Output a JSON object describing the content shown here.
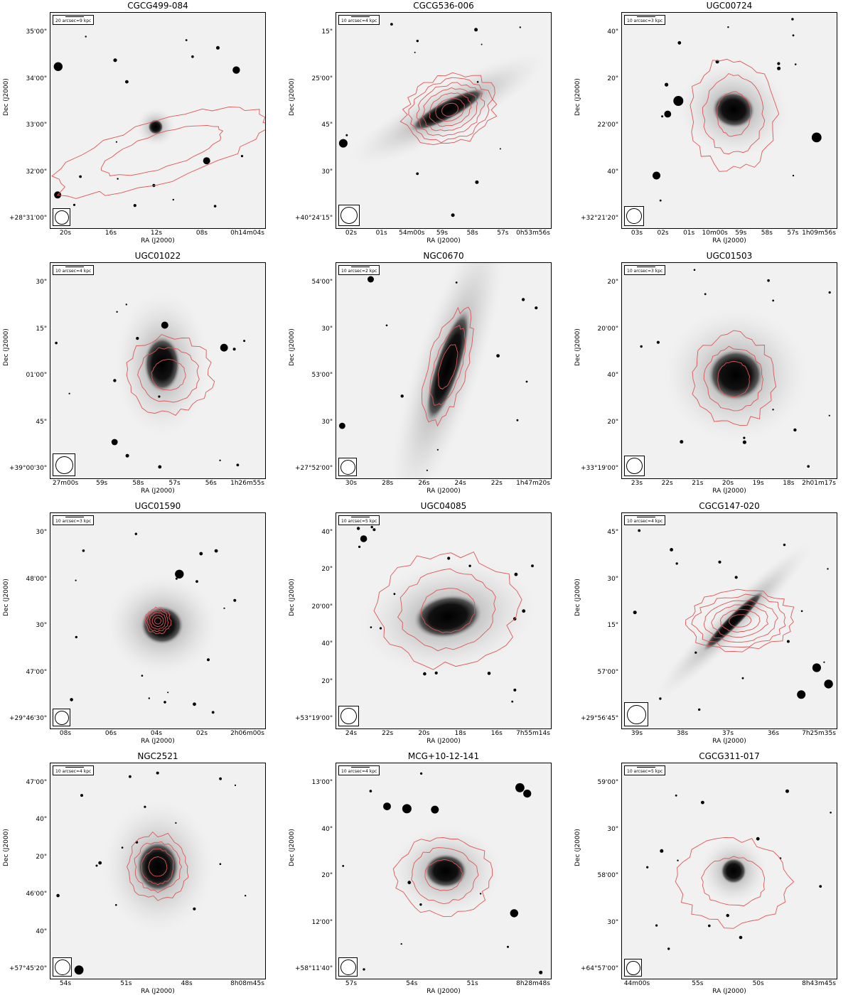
{
  "figure": {
    "xlabel": "RA (J2000)",
    "ylabel": "Dec (J2000)",
    "contour_color": "#e05555",
    "colormap": "inverted grayscale"
  },
  "panels": [
    {
      "title": "CGCG499-084",
      "scale": "20 arcsec=9 kpc",
      "yticks": [
        "35'00\"",
        "34'00\"",
        "33'00\"",
        "32'00\"",
        "+28°31'00\""
      ],
      "xticks": [
        "20s",
        "16s",
        "12s",
        "08s",
        "0h14m04s"
      ],
      "galaxy": {
        "type": "elliptical-with-halo",
        "cx": 0.49,
        "cy": 0.53,
        "rx": 0.035,
        "ry": 0.035,
        "tilt": 0
      },
      "contours": {
        "levels": 2,
        "rx": 0.52,
        "ry": 0.14,
        "tilt": -18,
        "cx": 0.52,
        "cy": 0.64
      },
      "beam": 0.5
    },
    {
      "title": "CGCG536-006",
      "scale": "10 arcsec=4 kpc",
      "yticks": [
        "15\"",
        "25'00\"",
        "45\"",
        "30\"",
        "+40°24'15\""
      ],
      "xticks": [
        "02s",
        "01s",
        "54m00s",
        "59s",
        "58s",
        "57s",
        "0h53m56s"
      ],
      "galaxy": {
        "type": "disk",
        "cx": 0.52,
        "cy": 0.45,
        "rx": 0.2,
        "ry": 0.045,
        "tilt": -28
      },
      "contours": {
        "levels": 7,
        "rx": 0.22,
        "ry": 0.16,
        "tilt": -20,
        "cx": 0.53,
        "cy": 0.45
      },
      "beam": 0.8
    },
    {
      "title": "UGC00724",
      "scale": "10 arcsec=3 kpc",
      "yticks": [
        "40\"",
        "20\"",
        "22'00\"",
        "40\"",
        "+32°21'20\""
      ],
      "xticks": [
        "03s",
        "02s",
        "01s",
        "10m00s",
        "59s",
        "58s",
        "57s",
        "1h09m56s"
      ],
      "galaxy": {
        "type": "spiral",
        "cx": 0.52,
        "cy": 0.45,
        "rx": 0.1,
        "ry": 0.085,
        "tilt": 10
      },
      "contours": {
        "levels": 3,
        "rx": 0.2,
        "ry": 0.26,
        "tilt": 0,
        "cx": 0.52,
        "cy": 0.47
      },
      "beam": 0.65
    },
    {
      "title": "UGC01022",
      "scale": "10 arcsec=4 kpc",
      "yticks": [
        "30\"",
        "15\"",
        "01'00\"",
        "45\"",
        "+39°00'30\""
      ],
      "xticks": [
        "27m00s",
        "59s",
        "58s",
        "57s",
        "56s",
        "1h26m55s"
      ],
      "galaxy": {
        "type": "elliptical",
        "cx": 0.52,
        "cy": 0.47,
        "rx": 0.085,
        "ry": 0.13,
        "tilt": 0
      },
      "contours": {
        "levels": 3,
        "rx": 0.2,
        "ry": 0.18,
        "tilt": 0,
        "cx": 0.55,
        "cy": 0.52
      },
      "beam": 0.9
    },
    {
      "title": "NGC0670",
      "scale": "10 arcsec=2 kpc",
      "yticks": [
        "54'00\"",
        "30\"",
        "53'00\"",
        "30\"",
        "+27°52'00\""
      ],
      "xticks": [
        "30s",
        "28s",
        "26s",
        "24s",
        "22s",
        "1h47m20s"
      ],
      "galaxy": {
        "type": "disk",
        "cx": 0.52,
        "cy": 0.48,
        "rx": 0.06,
        "ry": 0.28,
        "tilt": 18
      },
      "contours": {
        "levels": 3,
        "rx": 0.09,
        "ry": 0.27,
        "tilt": 16,
        "cx": 0.52,
        "cy": 0.48
      },
      "beam": 0.55
    },
    {
      "title": "UGC01503",
      "scale": "10 arcsec=3 kpc",
      "yticks": [
        "20\"",
        "20'00\"",
        "40\"",
        "20\"",
        "+33°19'00\""
      ],
      "xticks": [
        "23s",
        "22s",
        "21s",
        "20s",
        "19s",
        "18s",
        "2h01m17s"
      ],
      "galaxy": {
        "type": "elliptical",
        "cx": 0.53,
        "cy": 0.52,
        "rx": 0.13,
        "ry": 0.12,
        "tilt": 0
      },
      "contours": {
        "levels": 3,
        "rx": 0.19,
        "ry": 0.21,
        "tilt": 0,
        "cx": 0.52,
        "cy": 0.54
      },
      "beam": 0.7
    },
    {
      "title": "UGC01590",
      "scale": "10 arcsec=3 kpc",
      "yticks": [
        "30\"",
        "48'00\"",
        "30\"",
        "47'00\"",
        "+29°46'30\""
      ],
      "xticks": [
        "08s",
        "06s",
        "04s",
        "02s",
        "2h06m00s"
      ],
      "galaxy": {
        "type": "elliptical-with-halo",
        "cx": 0.52,
        "cy": 0.52,
        "rx": 0.1,
        "ry": 0.09,
        "tilt": 0
      },
      "contours": {
        "levels": 5,
        "rx": 0.06,
        "ry": 0.06,
        "tilt": 0,
        "cx": 0.5,
        "cy": 0.5
      },
      "beam": 0.5
    },
    {
      "title": "UGC04085",
      "scale": "10 arcsec=5 kpc",
      "yticks": [
        "40\"",
        "20\"",
        "20'00\"",
        "40\"",
        "20\"",
        "+53°19'00\""
      ],
      "xticks": [
        "24s",
        "22s",
        "20s",
        "18s",
        "16s",
        "7h55m14s"
      ],
      "galaxy": {
        "type": "spiral",
        "cx": 0.52,
        "cy": 0.48,
        "rx": 0.16,
        "ry": 0.1,
        "tilt": -10
      },
      "contours": {
        "levels": 3,
        "rx": 0.32,
        "ry": 0.26,
        "tilt": -8,
        "cx": 0.52,
        "cy": 0.45
      },
      "beam": 0.7
    },
    {
      "title": "CGCG147-020",
      "scale": "10 arcsec=4 kpc",
      "yticks": [
        "45\"",
        "30\"",
        "15\"",
        "57'00\"",
        "+29°56'45\""
      ],
      "xticks": [
        "39s",
        "38s",
        "37s",
        "36s",
        "7h25m35s"
      ],
      "galaxy": {
        "type": "disk",
        "cx": 0.52,
        "cy": 0.5,
        "rx": 0.2,
        "ry": 0.03,
        "tilt": -45
      },
      "contours": {
        "levels": 6,
        "rx": 0.25,
        "ry": 0.14,
        "tilt": -4,
        "cx": 0.55,
        "cy": 0.5
      },
      "beam": 1.0
    },
    {
      "title": "NGC2521",
      "scale": "10 arcsec=4 kpc",
      "yticks": [
        "47'00\"",
        "40\"",
        "20\"",
        "46'00\"",
        "40\"",
        "+57°45'20\""
      ],
      "xticks": [
        "54s",
        "51s",
        "48s",
        "8h08m45s"
      ],
      "galaxy": {
        "type": "elliptical-with-halo",
        "cx": 0.5,
        "cy": 0.48,
        "rx": 0.1,
        "ry": 0.12,
        "tilt": 0
      },
      "contours": {
        "levels": 4,
        "rx": 0.14,
        "ry": 0.15,
        "tilt": 0,
        "cx": 0.5,
        "cy": 0.48
      },
      "beam": 0.6
    },
    {
      "title": "MCG+10-12-141",
      "scale": "10 arcsec=4 kpc",
      "yticks": [
        "13'00\"",
        "40\"",
        "20\"",
        "12'00\"",
        "+58°11'40\""
      ],
      "xticks": [
        "57s",
        "54s",
        "51s",
        "8h28m48s"
      ],
      "galaxy": {
        "type": "spiral",
        "cx": 0.51,
        "cy": 0.5,
        "rx": 0.1,
        "ry": 0.08,
        "tilt": 0
      },
      "contours": {
        "levels": 3,
        "rx": 0.22,
        "ry": 0.18,
        "tilt": 0,
        "cx": 0.5,
        "cy": 0.52
      },
      "beam": 0.6
    },
    {
      "title": "CGCG311-017",
      "scale": "10 arcsec=5 kpc",
      "yticks": [
        "59'00\"",
        "30\"",
        "58'00\"",
        "30\"",
        "+64°57'00\""
      ],
      "xticks": [
        "44m00s",
        "55s",
        "50s",
        "8h43m45s"
      ],
      "galaxy": {
        "type": "elliptical",
        "cx": 0.52,
        "cy": 0.5,
        "rx": 0.06,
        "ry": 0.06,
        "tilt": 0
      },
      "contours": {
        "levels": 2,
        "rx": 0.26,
        "ry": 0.2,
        "tilt": 0,
        "cx": 0.52,
        "cy": 0.55
      },
      "beam": 0.5
    }
  ]
}
